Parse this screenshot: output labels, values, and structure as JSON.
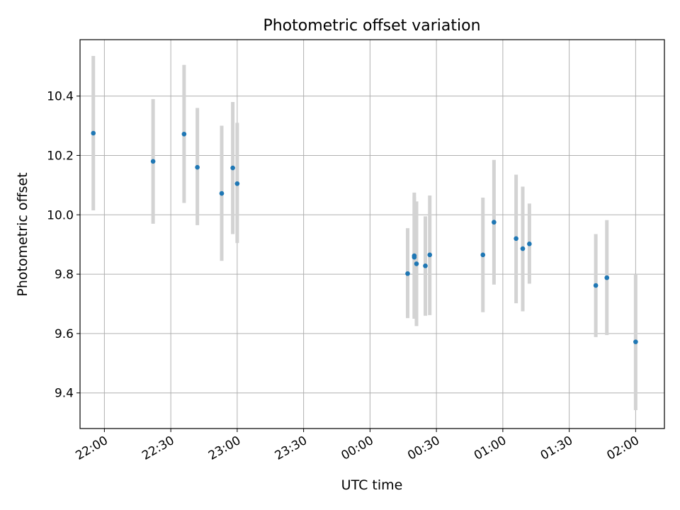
{
  "chart_data": {
    "type": "scatter",
    "title": "Photometric offset variation",
    "xlabel": "UTC time",
    "ylabel": "Photometric offset",
    "x_is_time": true,
    "x_tick_labels": [
      "22:00",
      "22:30",
      "23:00",
      "23:30",
      "00:00",
      "00:30",
      "01:00",
      "01:30",
      "02:00"
    ],
    "x_tick_times": [
      "2000-01-01T22:00",
      "2000-01-01T22:30",
      "2000-01-01T23:00",
      "2000-01-01T23:30",
      "2000-01-02T00:00",
      "2000-01-02T00:30",
      "2000-01-02T01:00",
      "2000-01-02T01:30",
      "2000-01-02T02:00"
    ],
    "xlim": [
      "2000-01-01T21:49",
      "2000-01-02T02:13"
    ],
    "y_ticks": [
      9.4,
      9.6,
      9.8,
      10.0,
      10.2,
      10.4
    ],
    "y_tick_labels": [
      "9.4",
      "9.6",
      "9.8",
      "10.0",
      "10.2",
      "10.4"
    ],
    "ylim": [
      9.28,
      10.59
    ],
    "grid": true,
    "marker_color": "#1f77b4",
    "errorbar_color": "#d3d3d3",
    "series": [
      {
        "points": [
          {
            "t": "2000-01-01T21:55",
            "y": 10.275,
            "lo": 10.015,
            "hi": 10.535
          },
          {
            "t": "2000-01-01T22:22",
            "y": 10.18,
            "lo": 9.97,
            "hi": 10.39
          },
          {
            "t": "2000-01-01T22:36",
            "y": 10.272,
            "lo": 10.04,
            "hi": 10.505
          },
          {
            "t": "2000-01-01T22:42",
            "y": 10.16,
            "lo": 9.965,
            "hi": 10.36
          },
          {
            "t": "2000-01-01T22:53",
            "y": 10.072,
            "lo": 9.845,
            "hi": 10.3
          },
          {
            "t": "2000-01-01T22:58",
            "y": 10.158,
            "lo": 9.935,
            "hi": 10.38
          },
          {
            "t": "2000-01-01T23:00",
            "y": 10.105,
            "lo": 9.905,
            "hi": 10.31
          },
          {
            "t": "2000-01-02T00:17",
            "y": 9.802,
            "lo": 9.652,
            "hi": 9.955
          },
          {
            "t": "2000-01-02T00:20",
            "y": 9.862,
            "lo": 9.65,
            "hi": 10.075
          },
          {
            "t": "2000-01-02T00:20",
            "y": 9.857,
            "lo": 9.655,
            "hi": 10.06
          },
          {
            "t": "2000-01-02T00:21",
            "y": 9.835,
            "lo": 9.625,
            "hi": 10.045
          },
          {
            "t": "2000-01-02T00:25",
            "y": 9.828,
            "lo": 9.66,
            "hi": 9.995
          },
          {
            "t": "2000-01-02T00:27",
            "y": 9.865,
            "lo": 9.662,
            "hi": 10.065
          },
          {
            "t": "2000-01-02T00:51",
            "y": 9.865,
            "lo": 9.672,
            "hi": 10.058
          },
          {
            "t": "2000-01-02T00:56",
            "y": 9.975,
            "lo": 9.765,
            "hi": 10.185
          },
          {
            "t": "2000-01-02T01:06",
            "y": 9.92,
            "lo": 9.702,
            "hi": 10.135
          },
          {
            "t": "2000-01-02T01:09",
            "y": 9.886,
            "lo": 9.675,
            "hi": 10.095
          },
          {
            "t": "2000-01-02T01:12",
            "y": 9.902,
            "lo": 9.768,
            "hi": 10.038
          },
          {
            "t": "2000-01-02T01:42",
            "y": 9.762,
            "lo": 9.588,
            "hi": 9.935
          },
          {
            "t": "2000-01-02T01:47",
            "y": 9.788,
            "lo": 9.595,
            "hi": 9.982
          },
          {
            "t": "2000-01-02T02:00",
            "y": 9.572,
            "lo": 9.342,
            "hi": 9.8
          }
        ]
      }
    ]
  }
}
